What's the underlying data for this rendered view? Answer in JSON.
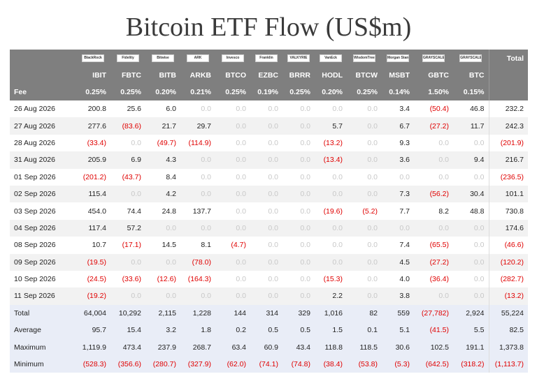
{
  "title": "Bitcoin ETF Flow (US$m)",
  "header": {
    "logos": [
      "BlackRock",
      "Fidelity",
      "Bitwise",
      "ARK",
      "Invesco",
      "Franklin",
      "VALKYRIE",
      "VanEck",
      "WisdomTree",
      "Morgan Stanley",
      "GRAYSCALE",
      "GRAYSCALE"
    ],
    "total_label": "Total",
    "tickers": [
      "IBIT",
      "FBTC",
      "BITB",
      "ARKB",
      "BTCO",
      "EZBC",
      "BRRR",
      "HODL",
      "BTCW",
      "MSBT",
      "GBTC",
      "BTC"
    ],
    "fee_label": "Fee",
    "fees": [
      "0.25%",
      "0.25%",
      "0.20%",
      "0.21%",
      "0.25%",
      "0.19%",
      "0.25%",
      "0.20%",
      "0.25%",
      "0.14%",
      "1.50%",
      "0.15%"
    ]
  },
  "rows": [
    {
      "date": "26 Aug 2026",
      "values": [
        "200.8",
        "25.6",
        "6.0",
        "0.0",
        "0.0",
        "0.0",
        "0.0",
        "0.0",
        "0.0",
        "3.4",
        "(50.4)",
        "46.8"
      ],
      "total": "232.2"
    },
    {
      "date": "27 Aug 2026",
      "values": [
        "277.6",
        "(83.6)",
        "21.7",
        "29.7",
        "0.0",
        "0.0",
        "0.0",
        "5.7",
        "0.0",
        "6.7",
        "(27.2)",
        "11.7"
      ],
      "total": "242.3"
    },
    {
      "date": "28 Aug 2026",
      "values": [
        "(33.4)",
        "0.0",
        "(49.7)",
        "(114.9)",
        "0.0",
        "0.0",
        "0.0",
        "(13.2)",
        "0.0",
        "9.3",
        "0.0",
        "0.0"
      ],
      "total": "(201.9)"
    },
    {
      "date": "31 Aug 2026",
      "values": [
        "205.9",
        "6.9",
        "4.3",
        "0.0",
        "0.0",
        "0.0",
        "0.0",
        "(13.4)",
        "0.0",
        "3.6",
        "0.0",
        "9.4"
      ],
      "total": "216.7"
    },
    {
      "date": "01 Sep 2026",
      "values": [
        "(201.2)",
        "(43.7)",
        "8.4",
        "0.0",
        "0.0",
        "0.0",
        "0.0",
        "0.0",
        "0.0",
        "0.0",
        "0.0",
        "0.0"
      ],
      "total": "(236.5)"
    },
    {
      "date": "02 Sep 2026",
      "values": [
        "115.4",
        "0.0",
        "4.2",
        "0.0",
        "0.0",
        "0.0",
        "0.0",
        "0.0",
        "0.0",
        "7.3",
        "(56.2)",
        "30.4"
      ],
      "total": "101.1"
    },
    {
      "date": "03 Sep 2026",
      "values": [
        "454.0",
        "74.4",
        "24.8",
        "137.7",
        "0.0",
        "0.0",
        "0.0",
        "(19.6)",
        "(5.2)",
        "7.7",
        "8.2",
        "48.8"
      ],
      "total": "730.8"
    },
    {
      "date": "04 Sep 2026",
      "values": [
        "117.4",
        "57.2",
        "0.0",
        "0.0",
        "0.0",
        "0.0",
        "0.0",
        "0.0",
        "0.0",
        "0.0",
        "0.0",
        "0.0"
      ],
      "total": "174.6"
    },
    {
      "date": "08 Sep 2026",
      "values": [
        "10.7",
        "(17.1)",
        "14.5",
        "8.1",
        "(4.7)",
        "0.0",
        "0.0",
        "0.0",
        "0.0",
        "7.4",
        "(65.5)",
        "0.0"
      ],
      "total": "(46.6)"
    },
    {
      "date": "09 Sep 2026",
      "values": [
        "(19.5)",
        "0.0",
        "0.0",
        "(78.0)",
        "0.0",
        "0.0",
        "0.0",
        "0.0",
        "0.0",
        "4.5",
        "(27.2)",
        "0.0"
      ],
      "total": "(120.2)"
    },
    {
      "date": "10 Sep 2026",
      "values": [
        "(24.5)",
        "(33.6)",
        "(12.6)",
        "(164.3)",
        "0.0",
        "0.0",
        "0.0",
        "(15.3)",
        "0.0",
        "4.0",
        "(36.4)",
        "0.0"
      ],
      "total": "(282.7)"
    },
    {
      "date": "11 Sep 2026",
      "values": [
        "(19.2)",
        "0.0",
        "0.0",
        "0.0",
        "0.0",
        "0.0",
        "0.0",
        "2.2",
        "0.0",
        "3.8",
        "0.0",
        "0.0"
      ],
      "total": "(13.2)"
    }
  ],
  "summary": [
    {
      "label": "Total",
      "values": [
        "64,004",
        "10,292",
        "2,115",
        "1,228",
        "144",
        "314",
        "329",
        "1,016",
        "82",
        "559",
        "(27,782)",
        "2,924"
      ],
      "total": "55,224"
    },
    {
      "label": "Average",
      "values": [
        "95.7",
        "15.4",
        "3.2",
        "1.8",
        "0.2",
        "0.5",
        "0.5",
        "1.5",
        "0.1",
        "5.1",
        "(41.5)",
        "5.5"
      ],
      "total": "82.5"
    },
    {
      "label": "Maximum",
      "values": [
        "1,119.9",
        "473.4",
        "237.9",
        "268.7",
        "63.4",
        "60.9",
        "43.4",
        "118.8",
        "118.5",
        "30.6",
        "102.5",
        "191.1"
      ],
      "total": "1,373.8"
    },
    {
      "label": "Minimum",
      "values": [
        "(528.3)",
        "(356.6)",
        "(280.7)",
        "(327.9)",
        "(62.0)",
        "(74.1)",
        "(74.8)",
        "(38.4)",
        "(53.8)",
        "(5.3)",
        "(642.5)",
        "(318.2)"
      ],
      "total": "(1,113.7)"
    }
  ]
}
